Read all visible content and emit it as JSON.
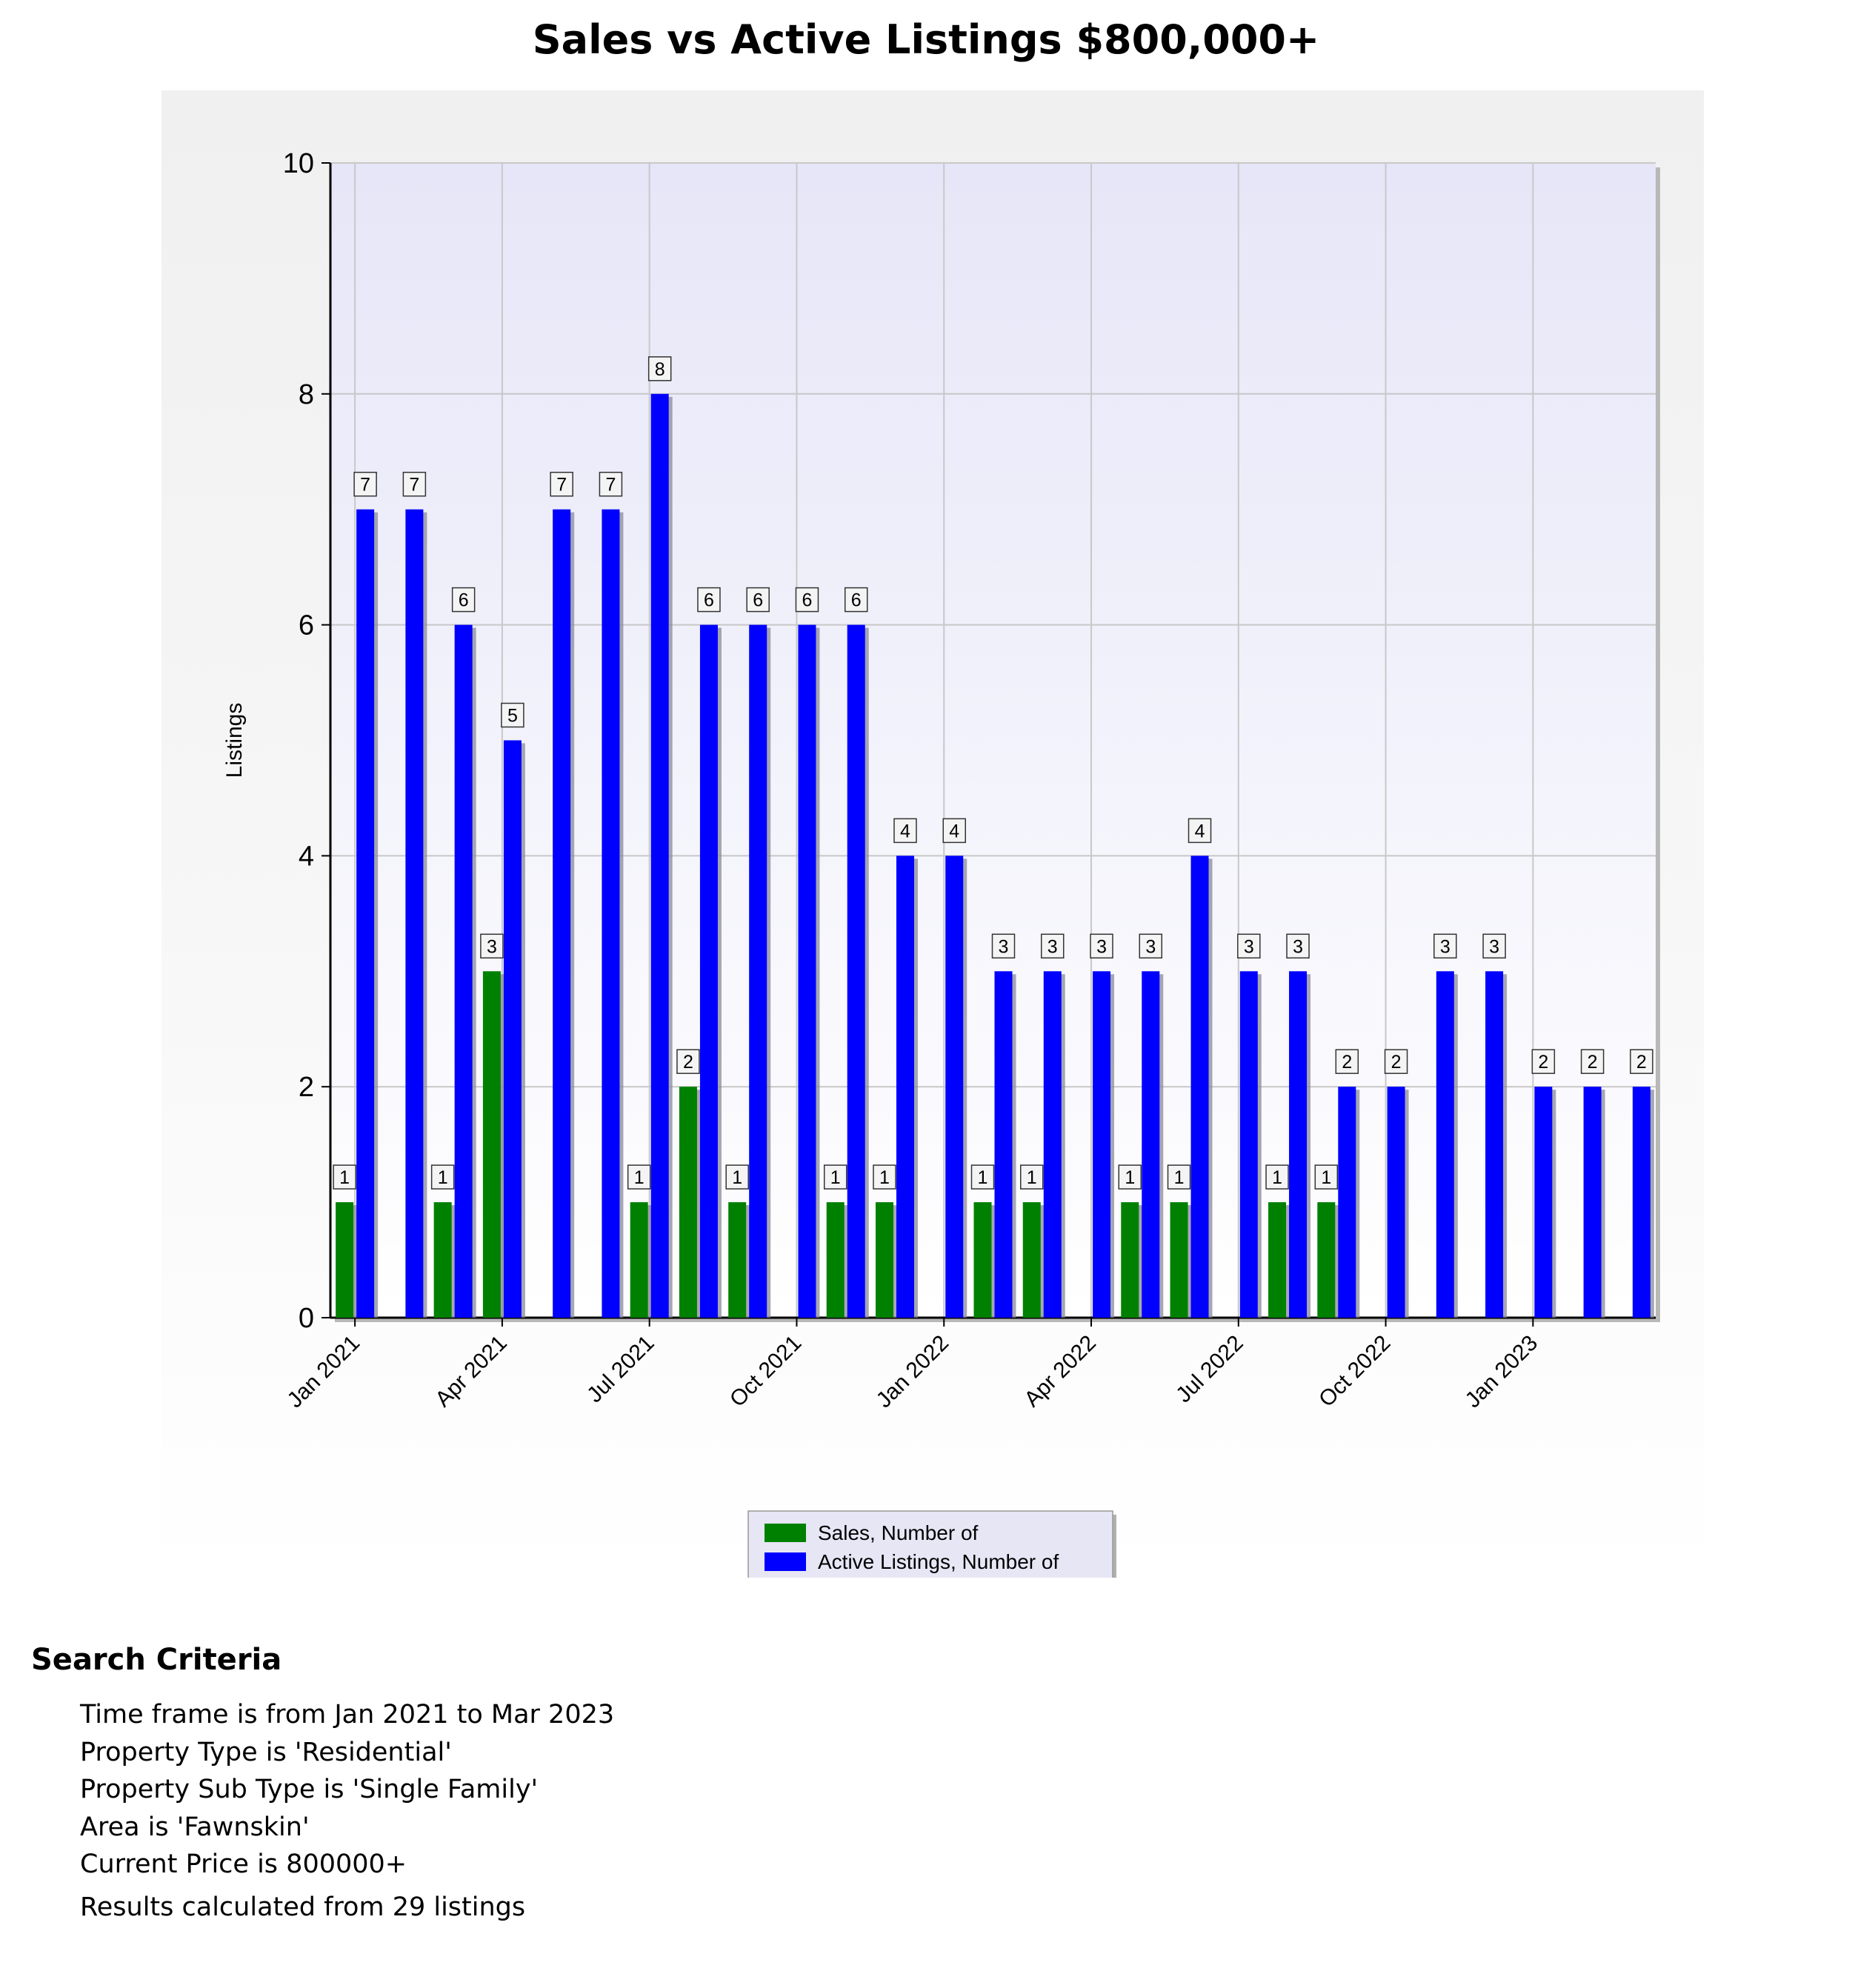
{
  "title": "Sales vs Active Listings $800,000+",
  "chart_data": {
    "type": "bar",
    "title": "Sales vs Active Listings $800,000+",
    "xlabel": "",
    "ylabel": "Listings",
    "ylim": [
      0,
      10
    ],
    "yticks": [
      0,
      2,
      4,
      6,
      8,
      10
    ],
    "grid": true,
    "legend_position": "bottom-center",
    "categories": [
      "Jan 2021",
      "Feb 2021",
      "Mar 2021",
      "Apr 2021",
      "May 2021",
      "Jun 2021",
      "Jul 2021",
      "Aug 2021",
      "Sep 2021",
      "Oct 2021",
      "Nov 2021",
      "Dec 2021",
      "Jan 2022",
      "Feb 2022",
      "Mar 2022",
      "Apr 2022",
      "May 2022",
      "Jun 2022",
      "Jul 2022",
      "Aug 2022",
      "Sep 2022",
      "Oct 2022",
      "Nov 2022",
      "Dec 2022",
      "Jan 2023",
      "Feb 2023",
      "Mar 2023"
    ],
    "xtick_labels": [
      "Jan 2021",
      "Apr 2021",
      "Jul 2021",
      "Oct 2021",
      "Jan 2022",
      "Apr 2022",
      "Jul 2022",
      "Oct 2022",
      "Jan 2023"
    ],
    "series": [
      {
        "name": "Sales, Number of",
        "color": "#008000",
        "values": [
          1,
          0,
          1,
          3,
          0,
          0,
          1,
          2,
          1,
          0,
          1,
          1,
          0,
          1,
          1,
          0,
          1,
          1,
          0,
          1,
          1,
          0,
          0,
          0,
          0,
          0,
          0
        ]
      },
      {
        "name": "Active Listings, Number of",
        "color": "#0000ff",
        "values": [
          7,
          7,
          6,
          5,
          7,
          7,
          8,
          6,
          6,
          6,
          6,
          4,
          4,
          3,
          3,
          3,
          3,
          4,
          3,
          3,
          2,
          2,
          3,
          3,
          2,
          2,
          2
        ]
      }
    ]
  },
  "criteria": {
    "heading": "Search Criteria",
    "lines": [
      "Time frame is from Jan 2021 to Mar 2023",
      "Property Type is 'Residential'",
      "Property Sub Type is 'Single Family'",
      "Area is 'Fawnskin'",
      "Current Price is 800000+"
    ],
    "results": "Results calculated from 29 listings"
  }
}
